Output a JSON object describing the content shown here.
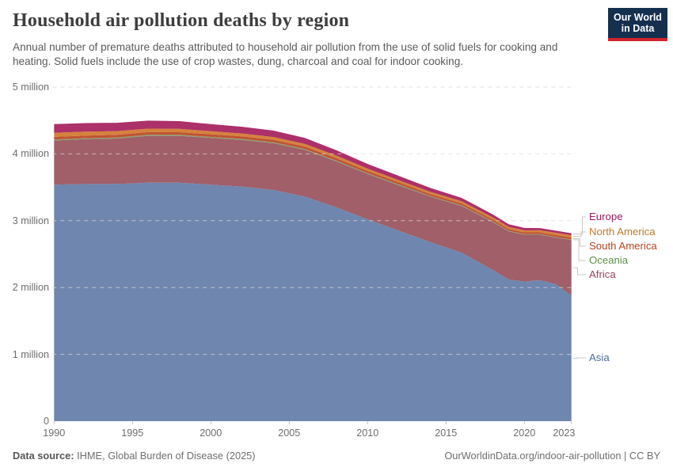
{
  "header": {
    "title": "Household air pollution deaths by region",
    "subtitle": "Annual number of premature deaths attributed to household air pollution from the use of solid fuels for cooking and heating. Solid fuels include the use of crop wastes, dung, charcoal and coal for indoor cooking.",
    "logo": {
      "line1": "Our World",
      "line2": "in Data",
      "bg_color": "#15304f",
      "bar_color": "#d2232c"
    }
  },
  "chart_data": {
    "type": "area",
    "stacked": true,
    "unit": "million deaths per year",
    "title": "Household air pollution deaths by region",
    "xlabel": "",
    "ylabel": "",
    "grid": "horizontal-dashed",
    "legend_position": "right",
    "xlim": [
      1990,
      2023
    ],
    "ylim": [
      0,
      5000000
    ],
    "x": [
      1990,
      1992,
      1994,
      1996,
      1998,
      2000,
      2002,
      2004,
      2006,
      2008,
      2010,
      2012,
      2014,
      2016,
      2017,
      2018,
      2019,
      2020,
      2021,
      2022,
      2023
    ],
    "x_ticks": [
      "1990",
      "1995",
      "2000",
      "2005",
      "2010",
      "2015",
      "2020",
      "2023"
    ],
    "y_ticks": [
      {
        "value": 0,
        "label": "0"
      },
      {
        "value": 1,
        "label": "1 million"
      },
      {
        "value": 2,
        "label": "2 million"
      },
      {
        "value": 3,
        "label": "3 million"
      },
      {
        "value": 4,
        "label": "4 million"
      },
      {
        "value": 5,
        "label": "5 million"
      }
    ],
    "series": [
      {
        "name": "Asia",
        "fill_color": "#6f86af",
        "label_color": "#4c6a9c",
        "values_millions": [
          3.54,
          3.55,
          3.55,
          3.57,
          3.57,
          3.54,
          3.51,
          3.46,
          3.36,
          3.2,
          3.02,
          2.85,
          2.68,
          2.52,
          2.39,
          2.26,
          2.12,
          2.09,
          2.11,
          2.05,
          1.88
        ]
      },
      {
        "name": "Africa",
        "fill_color": "#a05f69",
        "label_color": "#99465a",
        "values_millions": [
          0.66,
          0.67,
          0.68,
          0.7,
          0.7,
          0.7,
          0.7,
          0.7,
          0.7,
          0.69,
          0.68,
          0.68,
          0.68,
          0.7,
          0.71,
          0.72,
          0.72,
          0.7,
          0.68,
          0.7,
          0.83
        ]
      },
      {
        "name": "Oceania",
        "fill_color": "#84a06e",
        "label_color": "#5f8c4c",
        "values_millions": [
          0.015,
          0.015,
          0.015,
          0.015,
          0.015,
          0.014,
          0.014,
          0.013,
          0.013,
          0.012,
          0.011,
          0.011,
          0.01,
          0.01,
          0.01,
          0.009,
          0.009,
          0.008,
          0.008,
          0.008,
          0.008
        ]
      },
      {
        "name": "South America",
        "fill_color": "#c05433",
        "label_color": "#b4431f",
        "values_millions": [
          0.04,
          0.04,
          0.041,
          0.041,
          0.04,
          0.04,
          0.039,
          0.038,
          0.037,
          0.036,
          0.034,
          0.032,
          0.031,
          0.03,
          0.029,
          0.029,
          0.028,
          0.028,
          0.028,
          0.029,
          0.03
        ]
      },
      {
        "name": "North America",
        "fill_color": "#d5823d",
        "label_color": "#bf7a2e",
        "values_millions": [
          0.06,
          0.058,
          0.055,
          0.052,
          0.05,
          0.046,
          0.043,
          0.041,
          0.039,
          0.037,
          0.035,
          0.033,
          0.032,
          0.031,
          0.031,
          0.03,
          0.03,
          0.03,
          0.031,
          0.033,
          0.035
        ]
      },
      {
        "name": "Europe",
        "fill_color": "#ac3069",
        "label_color": "#9a1c60",
        "values_millions": [
          0.13,
          0.128,
          0.125,
          0.12,
          0.115,
          0.105,
          0.1,
          0.096,
          0.09,
          0.08,
          0.07,
          0.063,
          0.057,
          0.05,
          0.047,
          0.044,
          0.04,
          0.036,
          0.033,
          0.031,
          0.03
        ]
      }
    ]
  },
  "footer": {
    "source_label": "Data source:",
    "source_text": " IHME, Global Burden of Disease (2025)",
    "credit": "OurWorldinData.org/indoor-air-pollution | CC BY"
  }
}
